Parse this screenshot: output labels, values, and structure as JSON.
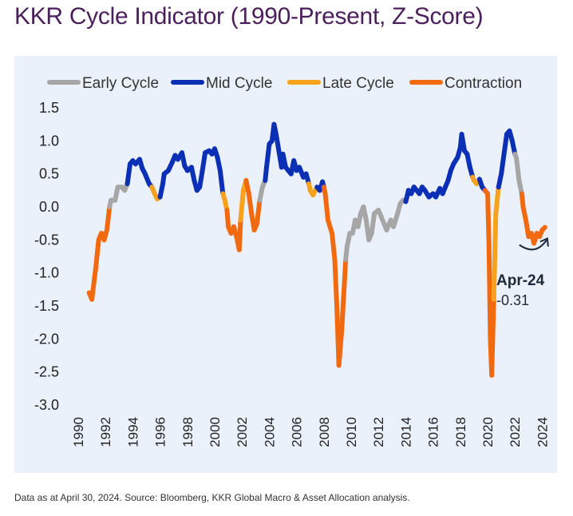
{
  "header": {
    "title": "KKR Cycle Indicator (1990-Present, Z-Score)"
  },
  "footnote": "Data as at April 30, 2024. Source: Bloomberg, KKR Global Macro & Asset Allocation analysis.",
  "chart_data": {
    "type": "line",
    "title": "KKR Cycle Indicator (1990-Present, Z-Score)",
    "xlabel": "",
    "ylabel": "",
    "xlim": [
      1990,
      2024.5
    ],
    "ylim": [
      -3.0,
      1.5
    ],
    "x_ticks": [
      "1990",
      "1992",
      "1994",
      "1996",
      "1998",
      "2000",
      "2002",
      "2004",
      "2006",
      "2008",
      "2010",
      "2012",
      "2014",
      "2016",
      "2018",
      "2020",
      "2022",
      "2024"
    ],
    "y_ticks": [
      "1.5",
      "1.0",
      "0.5",
      "0.0",
      "-0.5",
      "-1.0",
      "-1.5",
      "-2.0",
      "-2.5",
      "-3.0"
    ],
    "grid": false,
    "legend_position": "top",
    "series": [
      {
        "name": "Early Cycle",
        "color": "#a6a6a6"
      },
      {
        "name": "Mid Cycle",
        "color": "#0b2fb5"
      },
      {
        "name": "Late Cycle",
        "color": "#f6a21c"
      },
      {
        "name": "Contraction",
        "color": "#f26a10"
      }
    ],
    "points": [
      [
        1990.8,
        -1.3,
        3
      ],
      [
        1991.0,
        -1.4,
        3
      ],
      [
        1991.3,
        -0.9,
        3
      ],
      [
        1991.5,
        -0.5,
        3
      ],
      [
        1991.7,
        -0.4,
        3
      ],
      [
        1991.9,
        -0.5,
        3
      ],
      [
        1992.1,
        -0.35,
        3
      ],
      [
        1992.3,
        0.0,
        3
      ],
      [
        1992.4,
        0.1,
        0
      ],
      [
        1992.7,
        0.1,
        0
      ],
      [
        1992.9,
        0.3,
        0
      ],
      [
        1993.2,
        0.3,
        0
      ],
      [
        1993.4,
        0.25,
        0
      ],
      [
        1993.6,
        0.35,
        0
      ],
      [
        1993.8,
        0.65,
        1
      ],
      [
        1994.0,
        0.7,
        1
      ],
      [
        1994.2,
        0.65,
        1
      ],
      [
        1994.5,
        0.72,
        1
      ],
      [
        1994.7,
        0.58,
        1
      ],
      [
        1994.9,
        0.5,
        1
      ],
      [
        1995.2,
        0.35,
        1
      ],
      [
        1995.4,
        0.3,
        1
      ],
      [
        1995.6,
        0.2,
        2
      ],
      [
        1995.8,
        0.12,
        2
      ],
      [
        1996.0,
        0.15,
        2
      ],
      [
        1996.2,
        0.35,
        1
      ],
      [
        1996.3,
        0.5,
        1
      ],
      [
        1996.6,
        0.55,
        1
      ],
      [
        1996.9,
        0.68,
        1
      ],
      [
        1997.1,
        0.78,
        1
      ],
      [
        1997.3,
        0.72,
        1
      ],
      [
        1997.6,
        0.82,
        1
      ],
      [
        1997.8,
        0.62,
        1
      ],
      [
        1998.0,
        0.55,
        1
      ],
      [
        1998.3,
        0.6,
        1
      ],
      [
        1998.5,
        0.4,
        1
      ],
      [
        1998.7,
        0.25,
        1
      ],
      [
        1998.9,
        0.3,
        1
      ],
      [
        1999.1,
        0.55,
        1
      ],
      [
        1999.3,
        0.82,
        1
      ],
      [
        1999.6,
        0.85,
        1
      ],
      [
        1999.8,
        0.8,
        1
      ],
      [
        2000.0,
        0.88,
        1
      ],
      [
        2000.2,
        0.75,
        1
      ],
      [
        2000.4,
        0.55,
        1
      ],
      [
        2000.6,
        0.2,
        1
      ],
      [
        2000.75,
        0.1,
        2
      ],
      [
        2000.9,
        -0.05,
        2
      ],
      [
        2001.0,
        -0.3,
        3
      ],
      [
        2001.2,
        -0.4,
        3
      ],
      [
        2001.4,
        -0.3,
        3
      ],
      [
        2001.6,
        -0.45,
        3
      ],
      [
        2001.8,
        -0.65,
        3
      ],
      [
        2001.9,
        -0.2,
        3
      ],
      [
        2002.1,
        0.25,
        2
      ],
      [
        2002.3,
        0.4,
        2
      ],
      [
        2002.5,
        0.2,
        3
      ],
      [
        2002.7,
        -0.1,
        3
      ],
      [
        2002.9,
        -0.35,
        3
      ],
      [
        2003.1,
        -0.25,
        3
      ],
      [
        2003.3,
        0.1,
        3
      ],
      [
        2003.5,
        0.3,
        0
      ],
      [
        2003.7,
        0.4,
        0
      ],
      [
        2003.8,
        0.6,
        1
      ],
      [
        2004.0,
        0.95,
        1
      ],
      [
        2004.2,
        1.0,
        1
      ],
      [
        2004.35,
        1.25,
        1
      ],
      [
        2004.5,
        1.1,
        1
      ],
      [
        2004.7,
        0.85,
        1
      ],
      [
        2004.9,
        0.6,
        1
      ],
      [
        2005.0,
        0.8,
        1
      ],
      [
        2005.2,
        0.6,
        1
      ],
      [
        2005.4,
        0.55,
        1
      ],
      [
        2005.6,
        0.5,
        1
      ],
      [
        2005.8,
        0.7,
        1
      ],
      [
        2006.0,
        0.55,
        1
      ],
      [
        2006.2,
        0.6,
        1
      ],
      [
        2006.5,
        0.45,
        1
      ],
      [
        2006.7,
        0.5,
        1
      ],
      [
        2006.9,
        0.35,
        1
      ],
      [
        2007.0,
        0.25,
        2
      ],
      [
        2007.2,
        0.18,
        2
      ],
      [
        2007.5,
        0.3,
        2
      ],
      [
        2007.7,
        0.25,
        1
      ],
      [
        2007.9,
        0.38,
        1
      ],
      [
        2008.0,
        0.3,
        1
      ],
      [
        2008.1,
        0.2,
        3
      ],
      [
        2008.3,
        -0.2,
        3
      ],
      [
        2008.6,
        -0.4,
        3
      ],
      [
        2008.8,
        -0.8,
        3
      ],
      [
        2008.95,
        -1.5,
        3
      ],
      [
        2009.1,
        -2.4,
        3
      ],
      [
        2009.3,
        -1.9,
        3
      ],
      [
        2009.6,
        -0.8,
        3
      ],
      [
        2009.7,
        -0.6,
        0
      ],
      [
        2009.9,
        -0.4,
        0
      ],
      [
        2010.1,
        -0.4,
        0
      ],
      [
        2010.3,
        -0.2,
        0
      ],
      [
        2010.5,
        -0.3,
        0
      ],
      [
        2010.7,
        -0.1,
        0
      ],
      [
        2010.9,
        0.0,
        0
      ],
      [
        2011.1,
        -0.2,
        0
      ],
      [
        2011.3,
        -0.5,
        0
      ],
      [
        2011.5,
        -0.4,
        0
      ],
      [
        2011.7,
        -0.1,
        0
      ],
      [
        2012.0,
        -0.05,
        0
      ],
      [
        2012.3,
        -0.2,
        0
      ],
      [
        2012.6,
        -0.35,
        0
      ],
      [
        2012.9,
        -0.2,
        0
      ],
      [
        2013.1,
        -0.3,
        0
      ],
      [
        2013.4,
        -0.1,
        0
      ],
      [
        2013.6,
        0.05,
        0
      ],
      [
        2013.8,
        0.1,
        0
      ],
      [
        2014.0,
        0.08,
        0
      ],
      [
        2014.2,
        0.25,
        1
      ],
      [
        2014.4,
        0.2,
        1
      ],
      [
        2014.6,
        0.3,
        1
      ],
      [
        2014.8,
        0.25,
        1
      ],
      [
        2015.0,
        0.2,
        1
      ],
      [
        2015.2,
        0.3,
        1
      ],
      [
        2015.4,
        0.25,
        1
      ],
      [
        2015.7,
        0.15,
        1
      ],
      [
        2016.0,
        0.2,
        1
      ],
      [
        2016.2,
        0.15,
        1
      ],
      [
        2016.5,
        0.28,
        1
      ],
      [
        2016.7,
        0.2,
        1
      ],
      [
        2016.9,
        0.3,
        1
      ],
      [
        2017.1,
        0.4,
        1
      ],
      [
        2017.3,
        0.55,
        1
      ],
      [
        2017.5,
        0.65,
        1
      ],
      [
        2017.8,
        0.75,
        1
      ],
      [
        2018.0,
        0.9,
        1
      ],
      [
        2018.1,
        1.1,
        1
      ],
      [
        2018.3,
        0.85,
        1
      ],
      [
        2018.5,
        0.8,
        1
      ],
      [
        2018.7,
        0.6,
        1
      ],
      [
        2018.9,
        0.45,
        1
      ],
      [
        2019.0,
        0.4,
        2
      ],
      [
        2019.2,
        0.35,
        2
      ],
      [
        2019.4,
        0.42,
        2
      ],
      [
        2019.6,
        0.3,
        1
      ],
      [
        2019.8,
        0.25,
        1
      ],
      [
        2020.0,
        0.2,
        3
      ],
      [
        2020.1,
        -0.6,
        3
      ],
      [
        2020.2,
        -2.0,
        3
      ],
      [
        2020.3,
        -2.55,
        3
      ],
      [
        2020.45,
        -1.4,
        3
      ],
      [
        2020.6,
        -0.1,
        2
      ],
      [
        2020.8,
        0.3,
        2
      ],
      [
        2021.0,
        0.5,
        1
      ],
      [
        2021.2,
        0.8,
        1
      ],
      [
        2021.4,
        1.1,
        1
      ],
      [
        2021.6,
        1.15,
        1
      ],
      [
        2021.8,
        1.0,
        1
      ],
      [
        2022.0,
        0.8,
        1
      ],
      [
        2022.1,
        0.75,
        0
      ],
      [
        2022.3,
        0.4,
        0
      ],
      [
        2022.5,
        0.2,
        0
      ],
      [
        2022.6,
        0.0,
        3
      ],
      [
        2022.8,
        -0.2,
        3
      ],
      [
        2023.0,
        -0.45,
        3
      ],
      [
        2023.2,
        -0.4,
        3
      ],
      [
        2023.4,
        -0.55,
        3
      ],
      [
        2023.6,
        -0.4,
        3
      ],
      [
        2023.8,
        -0.45,
        3
      ],
      [
        2024.0,
        -0.35,
        3
      ],
      [
        2024.2,
        -0.31,
        3
      ]
    ],
    "annotation": {
      "label": "Apr-24",
      "value": "-0.31",
      "x": 2024.2,
      "y": -0.31
    }
  }
}
